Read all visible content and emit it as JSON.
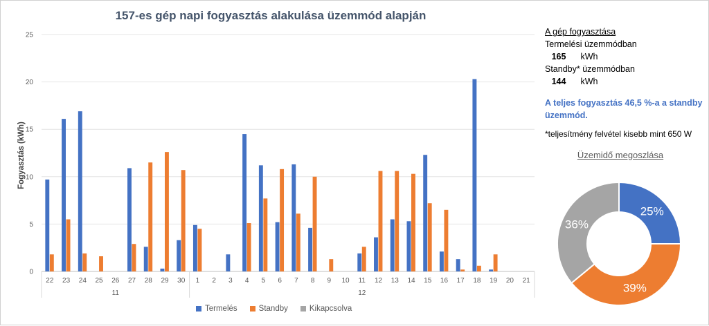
{
  "chart_data": [
    {
      "type": "bar",
      "title": "157-es gép napi fogyasztás alakulása üzemmód alapján",
      "ylabel": "Fogyasztás (kWh)",
      "xlabel": "",
      "ylim": [
        0,
        25
      ],
      "yticks": [
        0,
        5,
        10,
        15,
        20,
        25
      ],
      "grid": true,
      "legend": "bottom",
      "categories": [
        "22",
        "23",
        "24",
        "25",
        "26",
        "27",
        "28",
        "29",
        "30",
        "1",
        "2",
        "3",
        "4",
        "5",
        "6",
        "7",
        "8",
        "9",
        "10",
        "11",
        "12",
        "13",
        "14",
        "15",
        "16",
        "17",
        "18",
        "19",
        "20",
        "21"
      ],
      "groups": [
        {
          "label": "11",
          "from": 0,
          "to": 8
        },
        {
          "label": "12",
          "from": 9,
          "to": 29
        }
      ],
      "series": [
        {
          "name": "Termelés",
          "color": "#4472c4",
          "values": [
            9.7,
            16.1,
            16.9,
            0,
            0,
            10.9,
            2.6,
            0.3,
            3.3,
            4.9,
            0,
            1.8,
            14.5,
            11.2,
            5.2,
            11.3,
            4.6,
            0,
            0,
            1.9,
            3.6,
            5.5,
            5.3,
            12.3,
            2.1,
            1.3,
            20.3,
            0.2,
            0,
            0
          ]
        },
        {
          "name": "Standby",
          "color": "#ed7d31",
          "values": [
            1.8,
            5.5,
            1.9,
            1.6,
            0,
            2.9,
            11.5,
            12.6,
            10.7,
            4.5,
            0,
            0,
            5.1,
            7.7,
            10.8,
            6.1,
            10.0,
            1.3,
            0,
            2.6,
            10.6,
            10.6,
            10.3,
            7.2,
            6.5,
            0.2,
            0.6,
            1.8,
            0,
            0
          ]
        },
        {
          "name": "Kikapcsolva",
          "color": "#a5a5a5",
          "values": [
            0,
            0,
            0,
            0,
            0,
            0,
            0,
            0,
            0,
            0,
            0,
            0,
            0,
            0,
            0,
            0,
            0,
            0,
            0,
            0,
            0,
            0,
            0,
            0,
            0,
            0,
            0,
            0,
            0,
            0
          ]
        }
      ]
    },
    {
      "type": "pie",
      "title": "Üzemidő megoszlása",
      "donut": true,
      "slices": [
        {
          "label": "25%",
          "value": 25,
          "color": "#4472c4"
        },
        {
          "label": "39%",
          "value": 39,
          "color": "#ed7d31"
        },
        {
          "label": "36%",
          "value": 36,
          "color": "#a5a5a5"
        }
      ]
    }
  ],
  "panel": {
    "heading": "A gép fogyasztása",
    "production_label": "Termelési üzemmódban",
    "production_value": "165",
    "production_unit": "kWh",
    "standby_label": "Standby* üzemmódban",
    "standby_value": "144",
    "standby_unit": "kWh",
    "highlight": "A teljes fogyasztás 46,5 %-a a standby üzemmód.",
    "footnote": "*teljesítmény felvétel kisebb mint 650 W"
  }
}
